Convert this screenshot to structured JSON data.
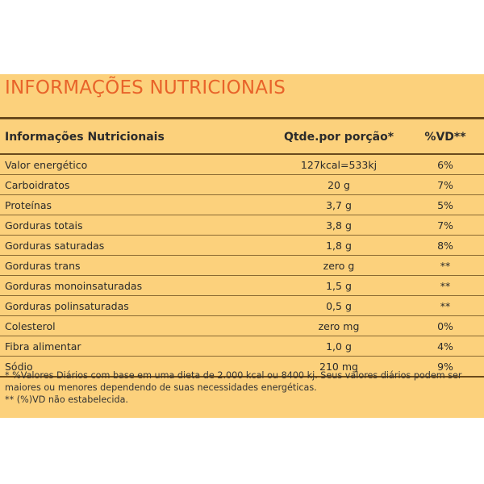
{
  "title": "INFORMAÇÕES NUTRICIONAIS",
  "table": {
    "headers": {
      "name": "Informações Nutricionais",
      "qty": "Qtde.por porção*",
      "vd": "%VD**"
    },
    "rows": [
      {
        "name": "Valor energético",
        "qty": "127kcal=533kj",
        "vd": "6%"
      },
      {
        "name": "Carboidratos",
        "qty": "20 g",
        "vd": "7%"
      },
      {
        "name": "Proteínas",
        "qty": "3,7 g",
        "vd": "5%"
      },
      {
        "name": "Gorduras totais",
        "qty": "3,8 g",
        "vd": "7%"
      },
      {
        "name": "Gorduras saturadas",
        "qty": "1,8 g",
        "vd": "8%"
      },
      {
        "name": "Gorduras trans",
        "qty": "zero g",
        "vd": "**"
      },
      {
        "name": "Gorduras monoinsaturadas",
        "qty": "1,5 g",
        "vd": "**"
      },
      {
        "name": "Gorduras polinsaturadas",
        "qty": "0,5 g",
        "vd": "**"
      },
      {
        "name": "Colesterol",
        "qty": "zero mg",
        "vd": "0%"
      },
      {
        "name": "Fibra alimentar",
        "qty": "1,0 g",
        "vd": "4%"
      },
      {
        "name": "Sódio",
        "qty": "210 mg",
        "vd": "9%"
      }
    ]
  },
  "footnotes": {
    "daily_values": "* %Valores Diários com base em uma dieta de 2.000 kcal ou 8400 kj. Seus valores diários podem ser maiores ou menores dependendo de suas necessidades energéticas.",
    "not_established": "** (%)VD não estabelecida."
  },
  "colors": {
    "background": "#fcd17c",
    "title": "#e8632a",
    "rule": "#6a4a1c"
  }
}
